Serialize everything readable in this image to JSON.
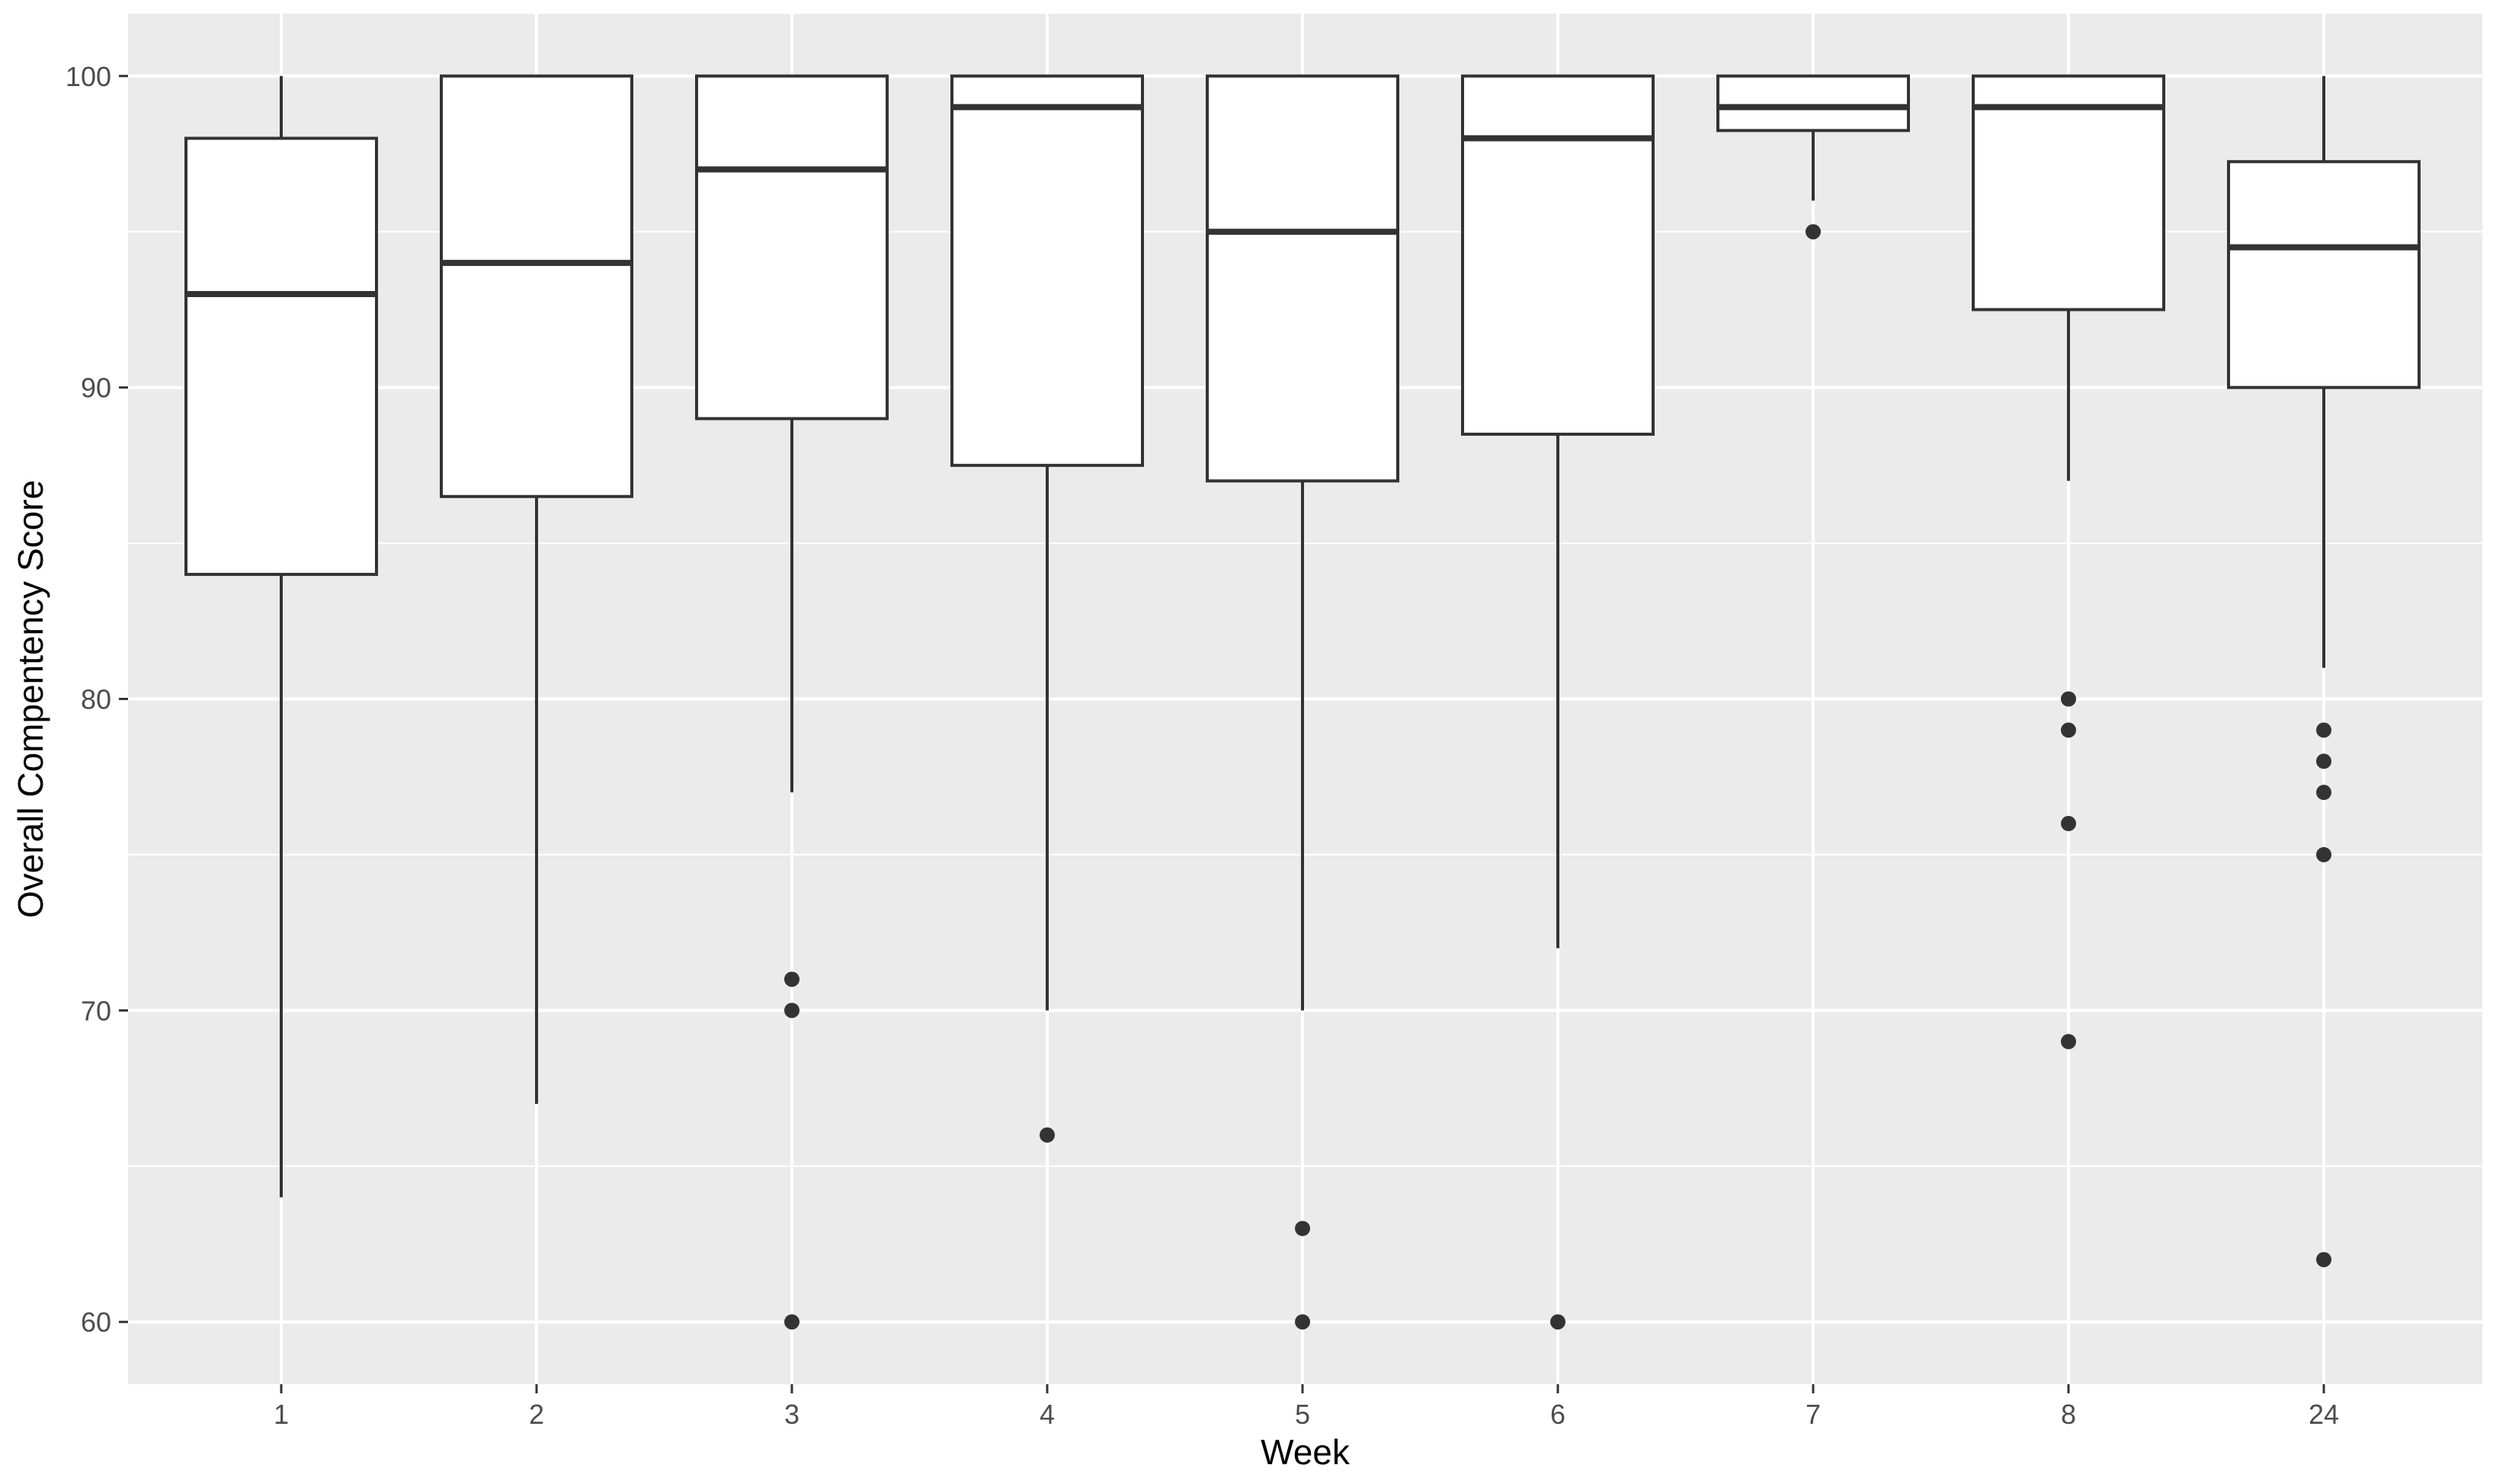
{
  "chart_data": {
    "type": "boxplot",
    "title": "",
    "xlabel": "Week",
    "ylabel": "Overall Compentency Score",
    "ylim": [
      58,
      102
    ],
    "y_ticks": [
      60,
      70,
      80,
      90,
      100
    ],
    "grid": true,
    "legend": "none",
    "colors": {
      "panel_background": "#EBEBEB",
      "grid_line": "#FFFFFF",
      "box_fill": "#FFFFFF",
      "box_stroke": "#333333",
      "outlier": "#333333",
      "tick_label": "#4D4D4D",
      "tick_mark": "#333333",
      "axis_title": "#000000"
    },
    "categories": [
      "1",
      "2",
      "3",
      "4",
      "5",
      "6",
      "7",
      "8",
      "24"
    ],
    "boxes": [
      {
        "category": "1",
        "whisker_low": 64,
        "q1": 84,
        "median": 93,
        "q3": 98,
        "whisker_high": 100,
        "outliers": []
      },
      {
        "category": "2",
        "whisker_low": 67,
        "q1": 86.5,
        "median": 94,
        "q3": 100,
        "whisker_high": 100,
        "outliers": []
      },
      {
        "category": "3",
        "whisker_low": 77,
        "q1": 89,
        "median": 97,
        "q3": 100,
        "whisker_high": 100,
        "outliers": [
          71,
          70,
          60
        ]
      },
      {
        "category": "4",
        "whisker_low": 70,
        "q1": 87.5,
        "median": 99,
        "q3": 100,
        "whisker_high": 100,
        "outliers": [
          66
        ]
      },
      {
        "category": "5",
        "whisker_low": 70,
        "q1": 87,
        "median": 95,
        "q3": 100,
        "whisker_high": 100,
        "outliers": [
          63,
          60
        ]
      },
      {
        "category": "6",
        "whisker_low": 72,
        "q1": 88.5,
        "median": 98,
        "q3": 100,
        "whisker_high": 100,
        "outliers": [
          60
        ]
      },
      {
        "category": "7",
        "whisker_low": 96,
        "q1": 98.25,
        "median": 99,
        "q3": 100,
        "whisker_high": 100,
        "outliers": [
          95
        ]
      },
      {
        "category": "8",
        "whisker_low": 87,
        "q1": 92.5,
        "median": 99,
        "q3": 100,
        "whisker_high": 100,
        "outliers": [
          80,
          79,
          76,
          69
        ]
      },
      {
        "category": "24",
        "whisker_low": 81,
        "q1": 90,
        "median": 94.5,
        "q3": 97.25,
        "whisker_high": 100,
        "outliers": [
          79,
          78,
          77,
          75,
          62
        ]
      }
    ]
  }
}
